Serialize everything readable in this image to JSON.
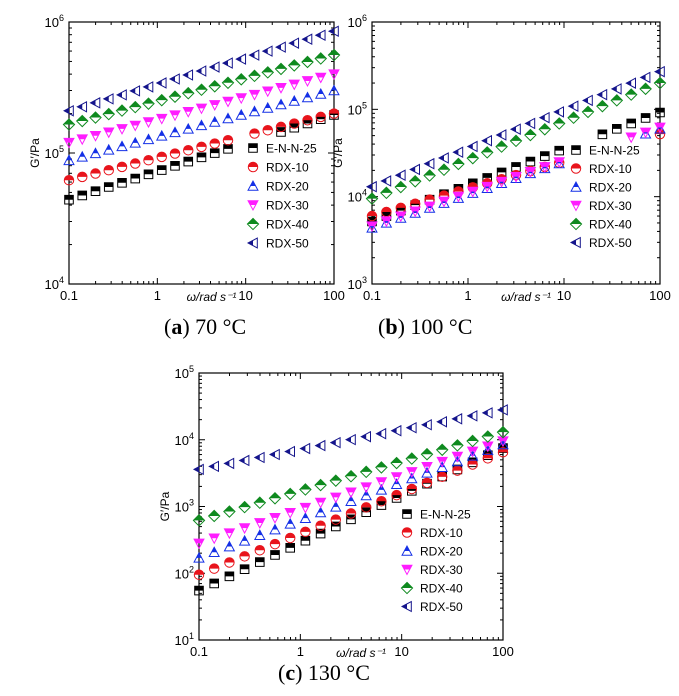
{
  "chart_data": [
    {
      "type": "scatter",
      "id": "a",
      "caption_letter": "a",
      "caption_text": "70 °C",
      "xlabel": "ω/rad s⁻¹",
      "ylabel": "G′/Pa",
      "xscale": "log",
      "yscale": "log",
      "xlim": [
        0.1,
        100
      ],
      "ylim": [
        10000,
        1000000
      ],
      "xticks": [
        {
          "v": 0.1,
          "label": "0.1"
        },
        {
          "v": 1,
          "label": "1"
        },
        {
          "v": 10,
          "label": "10"
        },
        {
          "v": 100,
          "label": "100"
        }
      ],
      "yticks": [
        {
          "v": 10000,
          "base": "10",
          "exp": "4"
        },
        {
          "v": 100000,
          "base": "10",
          "exp": "5"
        },
        {
          "v": 1000000,
          "base": "10",
          "exp": "6"
        }
      ],
      "legend_position": "bottom-right",
      "series": [
        {
          "name": "E-N-N-25",
          "marker": "square",
          "color": "#000000",
          "start": 44000,
          "end": 195000
        },
        {
          "name": "RDX-10",
          "marker": "circle",
          "color": "#e8141c",
          "start": 62000,
          "end": 200000
        },
        {
          "name": "RDX-20",
          "marker": "triangle-up",
          "color": "#1530e6",
          "start": 88000,
          "end": 300000
        },
        {
          "name": "RDX-30",
          "marker": "triangle-down",
          "color": "#ff1cff",
          "start": 120000,
          "end": 400000
        },
        {
          "name": "RDX-40",
          "marker": "diamond",
          "color": "#0f8a1f",
          "start": 165000,
          "end": 560000
        },
        {
          "name": "RDX-50",
          "marker": "triangle-left",
          "color": "#15158c",
          "start": 210000,
          "end": 850000
        }
      ]
    },
    {
      "type": "scatter",
      "id": "b",
      "caption_letter": "b",
      "caption_text": "100 °C",
      "xlabel": "ω/rad s⁻¹",
      "ylabel": "G′/Pa",
      "xscale": "log",
      "yscale": "log",
      "xlim": [
        0.1,
        100
      ],
      "ylim": [
        1000,
        1000000
      ],
      "xticks": [
        {
          "v": 0.1,
          "label": "0.1"
        },
        {
          "v": 1,
          "label": "1"
        },
        {
          "v": 10,
          "label": "10"
        },
        {
          "v": 100,
          "label": "100"
        }
      ],
      "yticks": [
        {
          "v": 1000,
          "base": "10",
          "exp": "3"
        },
        {
          "v": 10000,
          "base": "10",
          "exp": "4"
        },
        {
          "v": 100000,
          "base": "10",
          "exp": "5"
        },
        {
          "v": 1000000,
          "base": "10",
          "exp": "6"
        }
      ],
      "legend_position": "bottom-right",
      "series": [
        {
          "name": "E-N-N-25",
          "marker": "square",
          "color": "#000000",
          "start": 5200,
          "end": 92000
        },
        {
          "name": "RDX-10",
          "marker": "circle",
          "color": "#e8141c",
          "start": 6000,
          "end": 52000
        },
        {
          "name": "RDX-20",
          "marker": "triangle-up",
          "color": "#1530e6",
          "start": 4400,
          "end": 60000
        },
        {
          "name": "RDX-30",
          "marker": "triangle-down",
          "color": "#ff1cff",
          "start": 4600,
          "end": 62000
        },
        {
          "name": "RDX-40",
          "marker": "diamond",
          "color": "#0f8a1f",
          "start": 9500,
          "end": 200000
        },
        {
          "name": "RDX-50",
          "marker": "triangle-left",
          "color": "#15158c",
          "start": 13000,
          "end": 270000
        }
      ]
    },
    {
      "type": "scatter",
      "id": "c",
      "caption_letter": "c",
      "caption_text": "130 °C",
      "xlabel": "ω/rad s⁻¹",
      "ylabel": "G′/Pa",
      "xscale": "log",
      "yscale": "log",
      "xlim": [
        0.1,
        100
      ],
      "ylim": [
        10,
        100000
      ],
      "xticks": [
        {
          "v": 0.1,
          "label": "0.1"
        },
        {
          "v": 1,
          "label": "1"
        },
        {
          "v": 10,
          "label": "10"
        },
        {
          "v": 100,
          "label": "100"
        }
      ],
      "yticks": [
        {
          "v": 10,
          "base": "10",
          "exp": "1"
        },
        {
          "v": 100,
          "base": "10",
          "exp": "2"
        },
        {
          "v": 1000,
          "base": "10",
          "exp": "3"
        },
        {
          "v": 10000,
          "base": "10",
          "exp": "4"
        },
        {
          "v": 100000,
          "base": "10",
          "exp": "5"
        }
      ],
      "legend_position": "bottom-right",
      "series": [
        {
          "name": "E-N-N-25",
          "marker": "square",
          "color": "#000000",
          "start": 55,
          "end": 7500
        },
        {
          "name": "RDX-10",
          "marker": "circle",
          "color": "#e8141c",
          "start": 95,
          "end": 6500
        },
        {
          "name": "RDX-20",
          "marker": "triangle-up",
          "color": "#1530e6",
          "start": 170,
          "end": 8500
        },
        {
          "name": "RDX-30",
          "marker": "triangle-down",
          "color": "#ff1cff",
          "start": 280,
          "end": 9500
        },
        {
          "name": "RDX-40",
          "marker": "diamond",
          "color": "#0f8a1f",
          "start": 620,
          "end": 13000
        },
        {
          "name": "RDX-50",
          "marker": "triangle-left",
          "color": "#15158c",
          "start": 3600,
          "end": 28000
        }
      ]
    }
  ]
}
